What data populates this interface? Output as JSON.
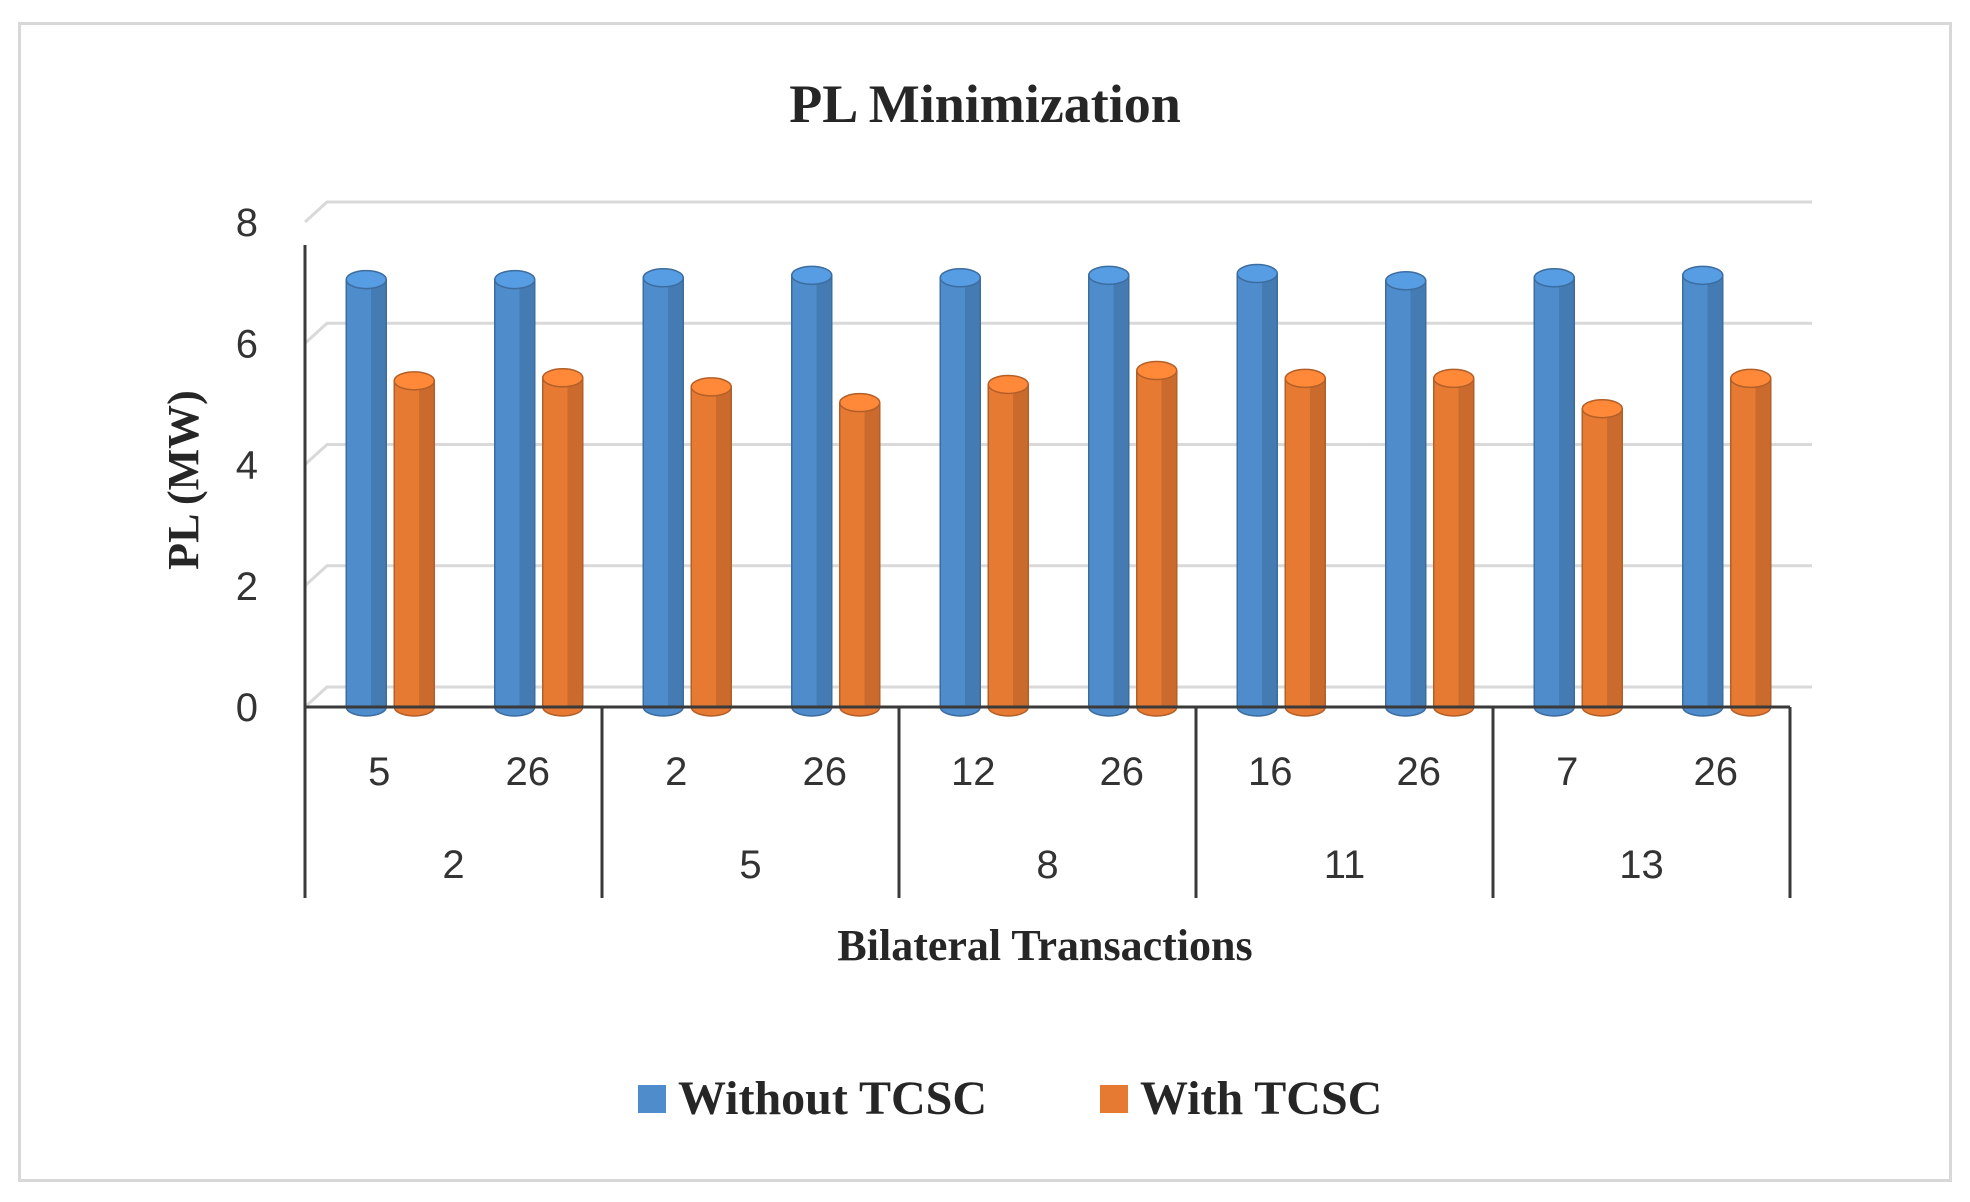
{
  "chart_data": {
    "type": "bar",
    "title": "PL Minimization",
    "xlabel": "Bilateral Transactions",
    "ylabel": "PL (MW)",
    "ylim": [
      0,
      8
    ],
    "yticks": [
      0,
      2,
      4,
      6,
      8
    ],
    "grid": true,
    "legend_position": "bottom",
    "categories": [
      "5",
      "26",
      "2",
      "26",
      "12",
      "26",
      "16",
      "26",
      "7",
      "26"
    ],
    "groups": [
      {
        "label": "2",
        "size": 2
      },
      {
        "label": "5",
        "size": 2
      },
      {
        "label": "8",
        "size": 2
      },
      {
        "label": "11",
        "size": 2
      },
      {
        "label": "13",
        "size": 2
      }
    ],
    "series": [
      {
        "name": "Without TCSC",
        "color": "#4e8ccc",
        "values": [
          7.05,
          7.05,
          7.08,
          7.12,
          7.08,
          7.12,
          7.15,
          7.03,
          7.08,
          7.12
        ]
      },
      {
        "name": "With TCSC",
        "color": "#e67a33",
        "values": [
          5.38,
          5.43,
          5.28,
          5.02,
          5.32,
          5.55,
          5.42,
          5.42,
          4.92,
          5.42
        ]
      }
    ]
  }
}
